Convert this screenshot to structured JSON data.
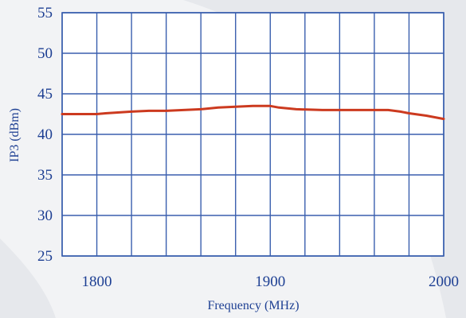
{
  "chart_data": {
    "type": "line",
    "title": "",
    "xlabel": "Frequency (MHz)",
    "ylabel": "IP3 (dBm)",
    "xlim": [
      1780,
      2000
    ],
    "ylim": [
      25,
      55
    ],
    "x_ticks": [
      1800,
      1900,
      2000
    ],
    "y_ticks": [
      25,
      30,
      35,
      40,
      45,
      50,
      55
    ],
    "x_tick_labels": [
      "1800",
      "1900",
      "2000"
    ],
    "y_tick_labels": [
      "25",
      "30",
      "35",
      "40",
      "45",
      "50",
      "55"
    ],
    "grid": true,
    "x_grid_step": 20,
    "y_grid_step": 5,
    "colors": {
      "line": "#cc3a1f",
      "grid": "#3a5fae",
      "plot_bg": "#ffffff",
      "text": "#1d3f93"
    },
    "series": [
      {
        "x": [
          1780,
          1800,
          1805,
          1820,
          1830,
          1840,
          1850,
          1860,
          1870,
          1880,
          1890,
          1900,
          1905,
          1915,
          1930,
          1950,
          1960,
          1968,
          1975,
          1980,
          1990,
          2000
        ],
        "y": [
          42.5,
          42.5,
          42.6,
          42.8,
          42.9,
          42.9,
          43.0,
          43.1,
          43.3,
          43.4,
          43.5,
          43.5,
          43.3,
          43.1,
          43.0,
          43.0,
          43.0,
          43.0,
          42.8,
          42.6,
          42.3,
          41.9
        ]
      }
    ]
  }
}
